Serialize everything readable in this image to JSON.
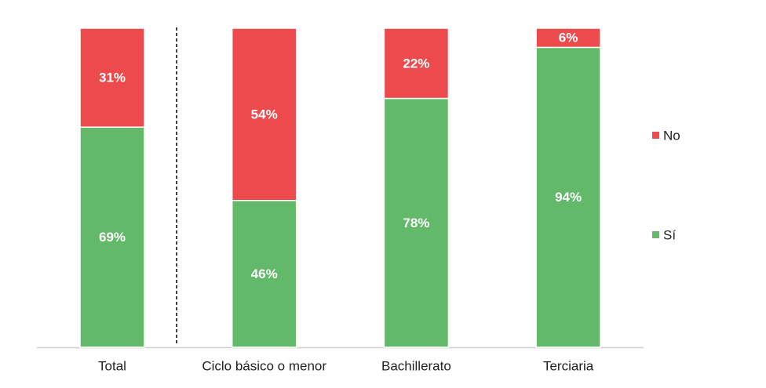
{
  "chart_data": {
    "type": "stacked_bar",
    "categories": [
      "Total",
      "Ciclo básico o menor",
      "Bachillerato",
      "Terciaria"
    ],
    "series": [
      {
        "name": "Sí",
        "color": "#62b96a",
        "values": [
          69,
          46,
          78,
          94
        ],
        "value_labels": [
          "69%",
          "46%",
          "78%",
          "94%"
        ]
      },
      {
        "name": "No",
        "color": "#ec4a4d",
        "values": [
          31,
          54,
          22,
          6
        ],
        "value_labels": [
          "31%",
          "54%",
          "22%",
          "6%"
        ]
      }
    ],
    "legend": "right"
  }
}
